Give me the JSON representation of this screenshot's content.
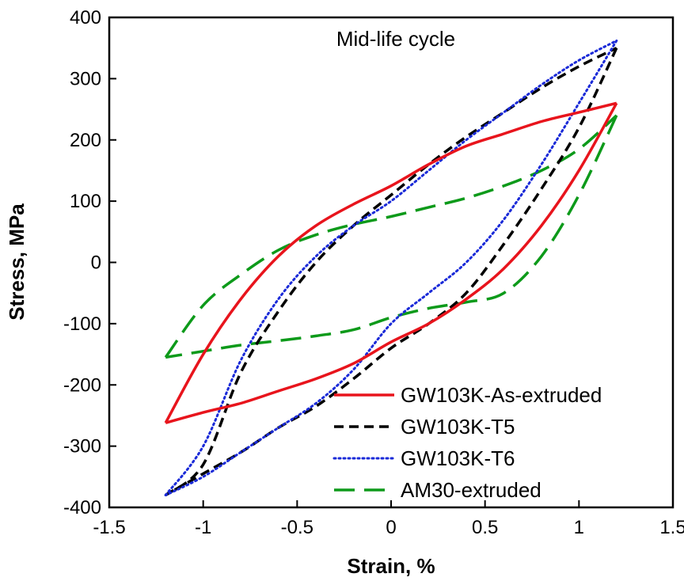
{
  "chart_data": {
    "type": "line",
    "title": "",
    "annotation": "Mid-life cycle",
    "xlabel": "Strain, %",
    "ylabel": "Stress, MPa",
    "xlim": [
      -1.5,
      1.5
    ],
    "ylim": [
      -400,
      400
    ],
    "xticks": [
      -1.5,
      -1,
      -0.5,
      0,
      0.5,
      1,
      1.5
    ],
    "xtick_labels": [
      "-1.5",
      "-1",
      "-0.5",
      "0",
      "0.5",
      "1",
      "1.5"
    ],
    "yticks": [
      -400,
      -300,
      -200,
      -100,
      0,
      100,
      200,
      300,
      400
    ],
    "ytick_labels": [
      "-400",
      "-300",
      "-200",
      "-100",
      "0",
      "100",
      "200",
      "300",
      "400"
    ],
    "grid": false,
    "legend_position": "bottom-right",
    "series": [
      {
        "name": "GW103K-As-extruded",
        "color": "#e8141c",
        "style": "solid",
        "loading": {
          "x": [
            -1.2,
            -1.0,
            -0.8,
            -0.6,
            -0.4,
            -0.2,
            0.0,
            0.2,
            0.4,
            0.6,
            0.8,
            1.0,
            1.2
          ],
          "y": [
            -262,
            -150,
            -60,
            10,
            60,
            95,
            125,
            160,
            190,
            210,
            230,
            245,
            260
          ]
        },
        "unloading": {
          "x": [
            1.2,
            1.0,
            0.8,
            0.6,
            0.4,
            0.2,
            0.0,
            -0.2,
            -0.4,
            -0.6,
            -0.8,
            -1.0,
            -1.2
          ],
          "y": [
            260,
            150,
            60,
            -10,
            -60,
            -100,
            -130,
            -165,
            -190,
            -210,
            -230,
            -245,
            -262
          ]
        }
      },
      {
        "name": "GW103K-T5",
        "color": "#000000",
        "style": "dashed",
        "loading": {
          "x": [
            -1.2,
            -1.0,
            -0.8,
            -0.6,
            -0.4,
            -0.2,
            0.0,
            0.2,
            0.4,
            0.6,
            0.8,
            1.0,
            1.2
          ],
          "y": [
            -380,
            -330,
            -180,
            -80,
            0,
            60,
            110,
            160,
            205,
            245,
            285,
            320,
            350
          ]
        },
        "unloading": {
          "x": [
            1.2,
            1.0,
            0.8,
            0.6,
            0.4,
            0.2,
            0.0,
            -0.2,
            -0.4,
            -0.6,
            -0.8,
            -1.0,
            -1.2
          ],
          "y": [
            350,
            220,
            120,
            30,
            -50,
            -100,
            -140,
            -190,
            -235,
            -270,
            -310,
            -345,
            -380
          ]
        }
      },
      {
        "name": "GW103K-T6",
        "color": "#1a2ad8",
        "style": "dotted",
        "loading": {
          "x": [
            -1.2,
            -1.0,
            -0.8,
            -0.6,
            -0.4,
            -0.2,
            0.0,
            0.2,
            0.4,
            0.6,
            0.8,
            1.0,
            1.2
          ],
          "y": [
            -380,
            -300,
            -160,
            -60,
            10,
            60,
            100,
            150,
            200,
            245,
            290,
            330,
            362
          ]
        },
        "unloading": {
          "x": [
            1.2,
            1.0,
            0.8,
            0.6,
            0.4,
            0.2,
            0.0,
            -0.2,
            -0.4,
            -0.6,
            -0.8,
            -1.0,
            -1.2
          ],
          "y": [
            362,
            260,
            160,
            70,
            0,
            -50,
            -100,
            -175,
            -230,
            -270,
            -310,
            -350,
            -380
          ]
        }
      },
      {
        "name": "AM30-extruded",
        "color": "#0d9a1a",
        "style": "longdash",
        "loading": {
          "x": [
            -1.2,
            -1.0,
            -0.8,
            -0.6,
            -0.4,
            -0.2,
            0.0,
            0.2,
            0.4,
            0.6,
            0.8,
            1.0,
            1.2
          ],
          "y": [
            -155,
            -70,
            -20,
            20,
            45,
            62,
            75,
            90,
            105,
            125,
            150,
            185,
            240
          ]
        },
        "unloading": {
          "x": [
            1.2,
            1.0,
            0.8,
            0.6,
            0.4,
            0.2,
            0.0,
            -0.2,
            -0.4,
            -0.6,
            -0.8,
            -1.0,
            -1.2
          ],
          "y": [
            240,
            110,
            10,
            -50,
            -65,
            -75,
            -90,
            -110,
            -120,
            -128,
            -135,
            -145,
            -155
          ]
        }
      }
    ]
  }
}
